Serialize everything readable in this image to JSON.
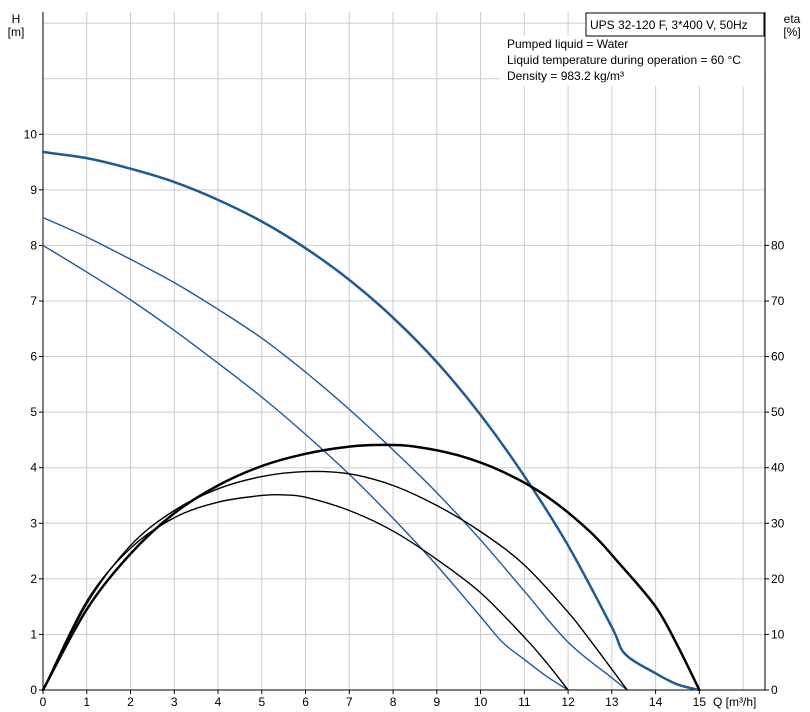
{
  "chart_data": {
    "type": "line",
    "title": "UPS 32-120 F, 3*400 V, 50Hz",
    "info_lines": [
      "Pumped liquid = Water",
      "Liquid temperature during operation = 60 °C",
      "Density = 983.2 kg/m³"
    ],
    "xlabel": "Q [m³/h]",
    "ylabel_left": {
      "name": "H",
      "unit": "[m]"
    },
    "ylabel_right": {
      "name": "eta",
      "unit": "[%]"
    },
    "xlim": [
      0,
      16.5
    ],
    "ylim_left": [
      0,
      12.2
    ],
    "ylim_right": [
      0,
      122
    ],
    "x_ticks": [
      "0",
      "1",
      "2",
      "3",
      "4",
      "5",
      "6",
      "7",
      "8",
      "9",
      "10",
      "11",
      "12",
      "13",
      "14",
      "15"
    ],
    "y_left_ticks": [
      "0",
      "1",
      "2",
      "3",
      "4",
      "5",
      "6",
      "7",
      "8",
      "9",
      "10"
    ],
    "y_right_ticks": [
      "0",
      "10",
      "20",
      "30",
      "40",
      "50",
      "60",
      "70",
      "80"
    ],
    "grid": true,
    "colors": {
      "head": "#1f5a92",
      "efficiency": "#000000",
      "grid": "#cccccc"
    },
    "series": [
      {
        "kind": "head",
        "speed": 1,
        "width": 2.5,
        "points": [
          [
            0,
            9.68
          ],
          [
            1,
            9.57
          ],
          [
            2,
            9.38
          ],
          [
            3,
            9.14
          ],
          [
            4,
            8.82
          ],
          [
            5,
            8.43
          ],
          [
            6,
            7.95
          ],
          [
            7,
            7.38
          ],
          [
            8,
            6.7
          ],
          [
            9,
            5.9
          ],
          [
            10,
            4.95
          ],
          [
            11,
            3.85
          ],
          [
            12,
            2.6
          ],
          [
            13,
            1.13
          ],
          [
            13.3,
            0.65
          ],
          [
            14,
            0.3
          ],
          [
            14.5,
            0.1
          ],
          [
            15,
            0.0
          ]
        ]
      },
      {
        "kind": "head",
        "speed": 2,
        "width": 1.4,
        "points": [
          [
            0,
            8.5
          ],
          [
            1,
            8.15
          ],
          [
            2,
            7.75
          ],
          [
            3,
            7.33
          ],
          [
            4,
            6.85
          ],
          [
            5,
            6.33
          ],
          [
            6,
            5.72
          ],
          [
            7,
            5.05
          ],
          [
            8,
            4.32
          ],
          [
            9,
            3.55
          ],
          [
            10,
            2.7
          ],
          [
            11,
            1.78
          ],
          [
            12,
            0.86
          ],
          [
            13,
            0.22
          ],
          [
            13.35,
            0.0
          ]
        ]
      },
      {
        "kind": "head",
        "speed": 3,
        "width": 1.4,
        "points": [
          [
            0,
            8.0
          ],
          [
            1,
            7.52
          ],
          [
            2,
            7.02
          ],
          [
            3,
            6.47
          ],
          [
            4,
            5.88
          ],
          [
            5,
            5.27
          ],
          [
            6,
            4.6
          ],
          [
            7,
            3.88
          ],
          [
            8,
            3.09
          ],
          [
            9,
            2.24
          ],
          [
            10,
            1.32
          ],
          [
            10.5,
            0.86
          ],
          [
            11,
            0.55
          ],
          [
            11.5,
            0.25
          ],
          [
            12,
            0.0
          ]
        ]
      },
      {
        "kind": "efficiency",
        "speed": 1,
        "width": 2.5,
        "points": [
          [
            0,
            0
          ],
          [
            1,
            14.5
          ],
          [
            2,
            24.5
          ],
          [
            3,
            31.8
          ],
          [
            4,
            36.8
          ],
          [
            5,
            40.3
          ],
          [
            6,
            42.5
          ],
          [
            7,
            43.8
          ],
          [
            7.8,
            44.1
          ],
          [
            8.5,
            43.8
          ],
          [
            9.5,
            42.2
          ],
          [
            10.5,
            39.3
          ],
          [
            11.5,
            34.9
          ],
          [
            12.5,
            28.5
          ],
          [
            13.2,
            22.5
          ],
          [
            14,
            15.0
          ],
          [
            14.5,
            8.0
          ],
          [
            15,
            0.0
          ]
        ]
      },
      {
        "kind": "efficiency",
        "speed": 2,
        "width": 1.4,
        "points": [
          [
            0,
            0
          ],
          [
            1,
            15.5
          ],
          [
            2,
            26.0
          ],
          [
            3,
            32.3
          ],
          [
            4,
            36.2
          ],
          [
            5,
            38.4
          ],
          [
            6,
            39.3
          ],
          [
            7,
            38.9
          ],
          [
            8,
            36.8
          ],
          [
            9,
            33.2
          ],
          [
            10,
            28.5
          ],
          [
            11,
            22.5
          ],
          [
            12,
            14.0
          ],
          [
            12.5,
            9.0
          ],
          [
            13.35,
            0.0
          ]
        ]
      },
      {
        "kind": "efficiency",
        "speed": 3,
        "width": 1.4,
        "points": [
          [
            0,
            0
          ],
          [
            1,
            16.0
          ],
          [
            2,
            25.5
          ],
          [
            3,
            31.0
          ],
          [
            4,
            33.8
          ],
          [
            5,
            35.0
          ],
          [
            5.5,
            35.1
          ],
          [
            6,
            34.7
          ],
          [
            7,
            32.3
          ],
          [
            8,
            28.6
          ],
          [
            9,
            23.5
          ],
          [
            10,
            17.5
          ],
          [
            11,
            9.5
          ],
          [
            11.5,
            5.0
          ],
          [
            12,
            0.0
          ]
        ]
      }
    ]
  }
}
